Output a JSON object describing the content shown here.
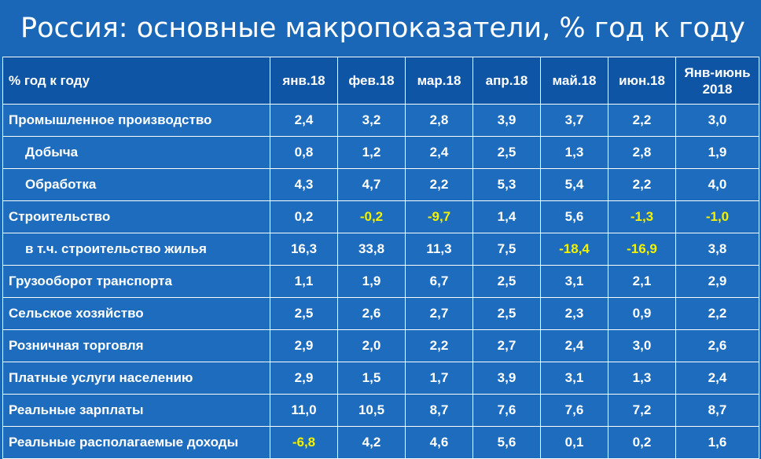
{
  "title": "Россия: основные макропоказатели, % год к году",
  "colors": {
    "background": "#1a67b8",
    "header_bg": "#0f55a6",
    "text": "#ffffff",
    "negative": "#f2f200"
  },
  "table": {
    "header_label": "% год к году",
    "columns": [
      "янв.18",
      "фев.18",
      "мар.18",
      "апр.18",
      "май.18",
      "июн.18",
      "Янв-июнь 2018"
    ],
    "rows": [
      {
        "label": "Промышленное производство",
        "indent": false,
        "values": [
          "2,4",
          "3,2",
          "2,8",
          "3,9",
          "3,7",
          "2,2",
          "3,0"
        ]
      },
      {
        "label": "Добыча",
        "indent": true,
        "values": [
          "0,8",
          "1,2",
          "2,4",
          "2,5",
          "1,3",
          "2,8",
          "1,9"
        ]
      },
      {
        "label": "Обработка",
        "indent": true,
        "values": [
          "4,3",
          "4,7",
          "2,2",
          "5,3",
          "5,4",
          "2,2",
          "4,0"
        ]
      },
      {
        "label": "Строительство",
        "indent": false,
        "values": [
          "0,2",
          "-0,2",
          "-9,7",
          "1,4",
          "5,6",
          "-1,3",
          "-1,0"
        ]
      },
      {
        "label": "в т.ч. строительство жилья",
        "indent": true,
        "values": [
          "16,3",
          "33,8",
          "11,3",
          "7,5",
          "-18,4",
          "-16,9",
          "3,8"
        ]
      },
      {
        "label": "Грузооборот транспорта",
        "indent": false,
        "values": [
          "1,1",
          "1,9",
          "6,7",
          "2,5",
          "3,1",
          "2,1",
          "2,9"
        ]
      },
      {
        "label": "Сельское хозяйство",
        "indent": false,
        "values": [
          "2,5",
          "2,6",
          "2,7",
          "2,5",
          "2,3",
          "0,9",
          "2,2"
        ]
      },
      {
        "label": "Розничная торговля",
        "indent": false,
        "values": [
          "2,9",
          "2,0",
          "2,2",
          "2,7",
          "2,4",
          "3,0",
          "2,6"
        ]
      },
      {
        "label": "Платные услуги населению",
        "indent": false,
        "values": [
          "2,9",
          "1,5",
          "1,7",
          "3,9",
          "3,1",
          "1,3",
          "2,4"
        ]
      },
      {
        "label": "Реальные зарплаты",
        "indent": false,
        "values": [
          "11,0",
          "10,5",
          "8,7",
          "7,6",
          "7,6",
          "7,2",
          "8,7"
        ]
      },
      {
        "label": "Реальные располагаемые доходы",
        "indent": false,
        "values": [
          "-6,8",
          "4,2",
          "4,6",
          "5,6",
          "0,1",
          "0,2",
          "1,6"
        ]
      }
    ]
  }
}
